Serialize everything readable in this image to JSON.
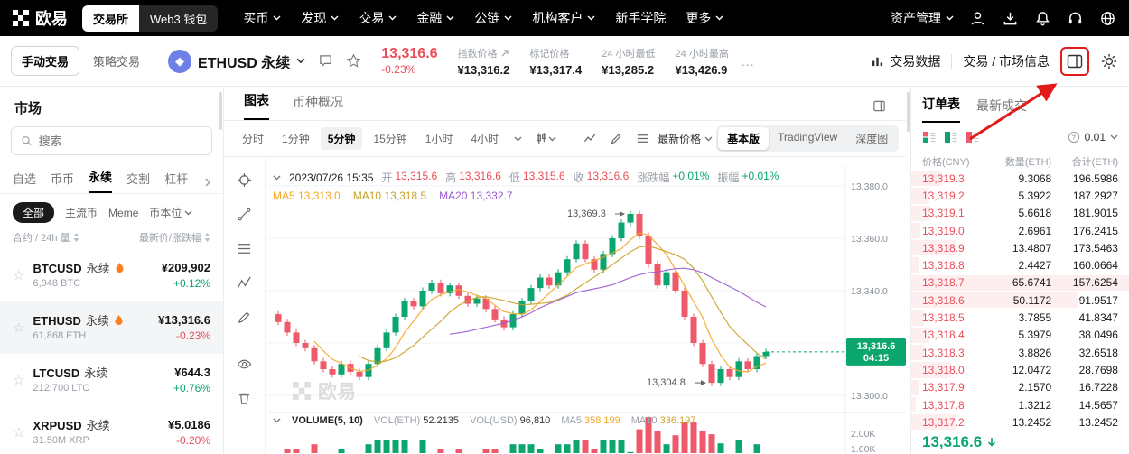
{
  "topnav": {
    "brand": "欧易",
    "toggle": [
      {
        "label": "交易所",
        "active": true
      },
      {
        "label": "Web3 钱包",
        "active": false
      }
    ],
    "menu": [
      {
        "label": "买币",
        "chevron": true
      },
      {
        "label": "发现",
        "chevron": true
      },
      {
        "label": "交易",
        "chevron": true
      },
      {
        "label": "金融",
        "chevron": true
      },
      {
        "label": "公链",
        "chevron": true
      },
      {
        "label": "机构客户",
        "chevron": true
      },
      {
        "label": "新手学院",
        "chevron": false
      },
      {
        "label": "更多",
        "chevron": true
      }
    ],
    "assets_label": "资产管理",
    "icons": [
      "user-icon",
      "download-icon",
      "bell-icon",
      "headset-icon",
      "globe-icon"
    ]
  },
  "subheader": {
    "mode_tabs": [
      {
        "label": "手动交易",
        "active": true
      },
      {
        "label": "策略交易",
        "active": false
      }
    ],
    "instrument": {
      "name": "ETHUSD 永续",
      "price": "13,316.6",
      "change": "-0.23%"
    },
    "stats": [
      {
        "label": "指数价格",
        "value": "¥13,316.2",
        "icon": "link"
      },
      {
        "label": "标记价格",
        "value": "¥13,317.4",
        "icon": ""
      },
      {
        "label": "24 小时最低",
        "value": "¥13,285.2",
        "icon": ""
      },
      {
        "label": "24 小时最高",
        "value": "¥13,426.9",
        "icon": ""
      }
    ],
    "more": "...",
    "trade_data": "交易数据",
    "market_info": "交易 / 市场信息"
  },
  "sidebar": {
    "title": "市场",
    "search_placeholder": "搜索",
    "tabs": [
      {
        "label": "自选",
        "active": false
      },
      {
        "label": "币币",
        "active": false
      },
      {
        "label": "永续",
        "active": true
      },
      {
        "label": "交割",
        "active": false
      },
      {
        "label": "杠杆",
        "active": false
      }
    ],
    "filters": [
      {
        "label": "全部",
        "active": true,
        "chevron": false
      },
      {
        "label": "主流币",
        "active": false,
        "chevron": false
      },
      {
        "label": "Meme",
        "active": false,
        "chevron": false
      },
      {
        "label": "币本位",
        "active": false,
        "chevron": true
      }
    ],
    "sort_left": "合约 / 24h 量",
    "sort_right": "最新价/涨跌幅",
    "rows": [
      {
        "symbol": "BTCUSD",
        "type": "永续",
        "hot": true,
        "volume": "6,948 BTC",
        "price": "¥209,902",
        "change": "+0.12%",
        "up": true,
        "selected": false
      },
      {
        "symbol": "ETHUSD",
        "type": "永续",
        "hot": true,
        "volume": "61,868 ETH",
        "price": "¥13,316.6",
        "change": "-0.23%",
        "up": false,
        "selected": true
      },
      {
        "symbol": "LTCUSD",
        "type": "永续",
        "hot": false,
        "volume": "212,700 LTC",
        "price": "¥644.3",
        "change": "+0.76%",
        "up": true,
        "selected": false
      },
      {
        "symbol": "XRPUSD",
        "type": "永续",
        "hot": false,
        "volume": "31.50M XRP",
        "price": "¥5.0186",
        "change": "-0.20%",
        "up": false,
        "selected": false
      }
    ]
  },
  "chart": {
    "tabs": [
      {
        "label": "图表",
        "active": true
      },
      {
        "label": "币种概况",
        "active": false
      }
    ],
    "timeframes": [
      {
        "label": "分时",
        "active": false
      },
      {
        "label": "1分钟",
        "active": false
      },
      {
        "label": "5分钟",
        "active": true
      },
      {
        "label": "15分钟",
        "active": false
      },
      {
        "label": "1小时",
        "active": false
      },
      {
        "label": "4小时",
        "active": false
      }
    ],
    "latest_price": "最新价格",
    "views": [
      {
        "label": "基本版",
        "active": true
      },
      {
        "label": "TradingView",
        "active": false
      },
      {
        "label": "深度图",
        "active": false
      }
    ],
    "datetime": "2023/07/26 15:35",
    "ohlc": [
      {
        "label": "开",
        "value": "13,315.6",
        "cls": "red"
      },
      {
        "label": "高",
        "value": "13,316.6",
        "cls": "red"
      },
      {
        "label": "低",
        "value": "13,315.6",
        "cls": "red"
      },
      {
        "label": "收",
        "value": "13,316.6",
        "cls": "red"
      },
      {
        "label": "涨跌幅",
        "value": "+0.01%",
        "cls": "green"
      },
      {
        "label": "振幅",
        "value": "+0.01%",
        "cls": "green"
      }
    ],
    "ma": [
      {
        "label": "MA5",
        "value": "13,313.0",
        "color": "#f5a623"
      },
      {
        "label": "MA10",
        "value": "13,318.5",
        "color": "#c9a227"
      },
      {
        "label": "MA20",
        "value": "13,332.7",
        "color": "#9b59d0"
      }
    ],
    "volume_row": [
      {
        "label": "VOLUME(5, 10)",
        "value": "",
        "color": ""
      },
      {
        "label": "VOL(ETH)",
        "value": "52.2135",
        "color": "#333333"
      },
      {
        "label": "VOL(USD)",
        "value": "96,810",
        "color": "#333333"
      },
      {
        "label": "MA5",
        "value": "358.199",
        "color": "#f5a623"
      },
      {
        "label": "MA10",
        "value": "336.197",
        "color": "#c9a227"
      }
    ],
    "watermark": "欧易"
  },
  "chart_data": {
    "type": "candlestick",
    "closes": [
      13328,
      13324,
      13320,
      13318,
      13313,
      13310,
      13308,
      13312,
      13309,
      13307,
      13312,
      13318,
      13324,
      13330,
      13336,
      13334,
      13340,
      13343,
      13339,
      13342,
      13338,
      13335,
      13337,
      13333,
      13329,
      13326,
      13331,
      13336,
      13341,
      13345,
      13342,
      13347,
      13352,
      13358,
      13352,
      13348,
      13354,
      13360,
      13366,
      13369.3,
      13361,
      13350,
      13342,
      13347,
      13340,
      13330,
      13320,
      13312,
      13304.8,
      13310,
      13307,
      13313,
      13310,
      13315,
      13316.6
    ],
    "gridlines": [
      13380,
      13360,
      13340,
      13320,
      13300
    ],
    "current_price": 13316.6,
    "current_time": "04:15",
    "annotations": {
      "high": "13,369.3",
      "low": "13,304.8"
    },
    "vol_axis": [
      "2.00K",
      "1.00K"
    ],
    "up_color": "#0ba56e",
    "down_color": "#ee5a6a"
  },
  "orderbook": {
    "tabs": [
      {
        "label": "订单表",
        "active": true
      },
      {
        "label": "最新成交",
        "active": false
      }
    ],
    "precision": "0.01",
    "headers": [
      "价格(CNY)",
      "数量(ETH)",
      "合计(ETH)"
    ],
    "asks": [
      [
        "13,319.3",
        "9.3068",
        "196.5986"
      ],
      [
        "13,319.2",
        "5.3922",
        "187.2927"
      ],
      [
        "13,319.1",
        "5.6618",
        "181.9015"
      ],
      [
        "13,319.0",
        "2.6961",
        "176.2415"
      ],
      [
        "13,318.9",
        "13.4807",
        "173.5463"
      ],
      [
        "13,318.8",
        "2.4427",
        "160.0664"
      ],
      [
        "13,318.7",
        "65.6741",
        "157.6254"
      ],
      [
        "13,318.6",
        "50.1172",
        "91.9517"
      ],
      [
        "13,318.5",
        "3.7855",
        "41.8347"
      ],
      [
        "13,318.4",
        "5.3979",
        "38.0496"
      ],
      [
        "13,318.3",
        "3.8826",
        "32.6518"
      ],
      [
        "13,318.0",
        "12.0472",
        "28.7698"
      ],
      [
        "13,317.9",
        "2.1570",
        "16.7228"
      ],
      [
        "13,317.8",
        "1.3212",
        "14.5657"
      ],
      [
        "13,317.2",
        "13.2452",
        "13.2452"
      ]
    ],
    "last_price": "13,316.6"
  }
}
